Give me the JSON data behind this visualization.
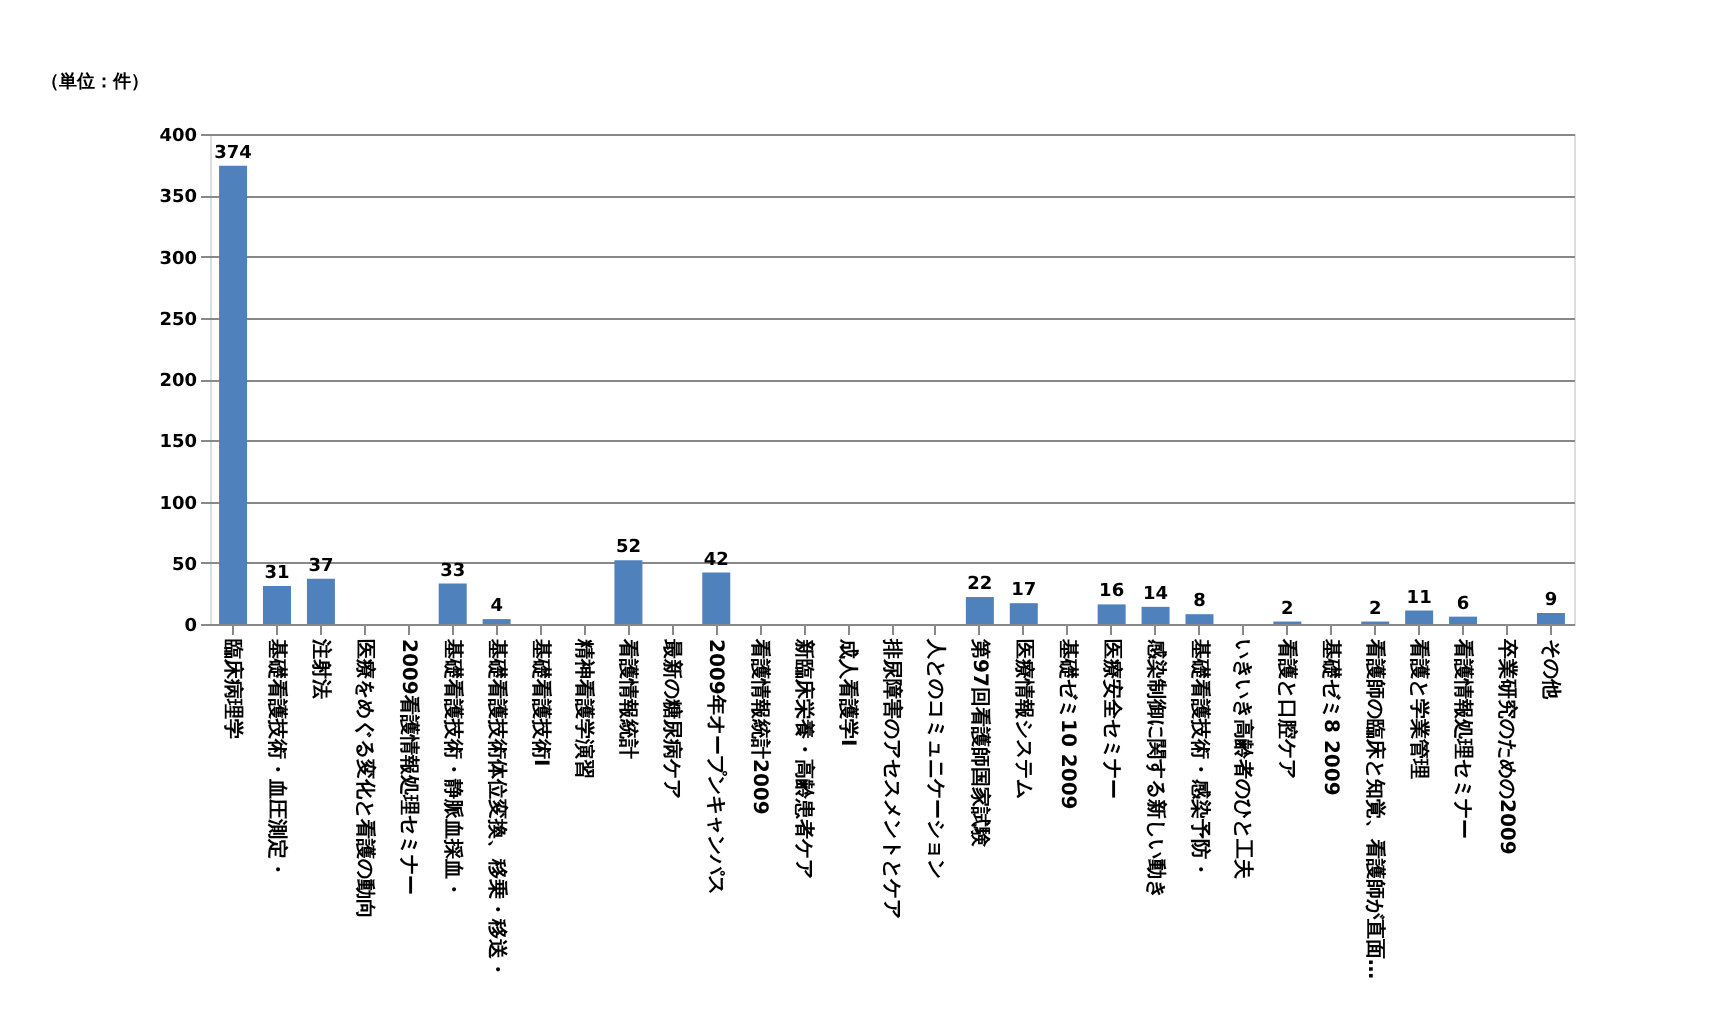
{
  "chart_data": {
    "type": "bar",
    "ylabel": "（単位：件）",
    "categories": [
      "臨床病理学",
      "基礎看護技術・血圧測定・",
      "注射法",
      "医療をめぐる変化と看護の動向",
      "2009看護情報処理セミナー",
      "基礎看護技術・静脈血採血・",
      "基礎看護技術体位変換、移乗・移送・",
      "基礎看護技術I",
      "精神看護学演習",
      "看護情報統計",
      "最新の糖尿病ケア",
      "2009年オープンキャンパス",
      "看護情報統計2009",
      "新臨床栄養・高齢患者ケア",
      "成人看護学I",
      "排尿障害のアセスメントとケア",
      "人とのコミュニケーション",
      "第97回看護師国家試験",
      "医療情報システム",
      "基礎ゼミ10 2009",
      "医療安全セミナー",
      "感染制御に関する新しい動き",
      "基礎看護技術・感染予防・",
      "いきいき高齢者のひと工夫",
      "看護と口腔ケア",
      "基礎ゼミ8 2009",
      "看護師の臨床と知覚、看護師が直面…",
      "看護と学業管理",
      "看護情報処理セミナー",
      "卒業研究のための2009",
      "その他"
    ],
    "values": [
      374,
      31,
      37,
      0,
      0,
      33,
      4,
      0,
      0,
      52,
      0,
      42,
      0,
      0,
      0,
      0,
      0,
      22,
      17,
      0,
      16,
      14,
      8,
      0,
      2,
      0,
      2,
      11,
      6,
      0,
      9
    ],
    "value_labels": [
      "374",
      "31",
      "37",
      null,
      null,
      "33",
      "4",
      null,
      null,
      "52",
      null,
      "42",
      null,
      null,
      null,
      null,
      null,
      "22",
      "17",
      null,
      "16",
      "14",
      "8",
      null,
      "2",
      null,
      "2",
      "11",
      "6",
      null,
      "9"
    ],
    "color": "#4f81bd",
    "ylim": [
      0,
      400
    ],
    "yticks": [
      0,
      50,
      100,
      150,
      200,
      250,
      300,
      350,
      400
    ],
    "grid": "y"
  }
}
